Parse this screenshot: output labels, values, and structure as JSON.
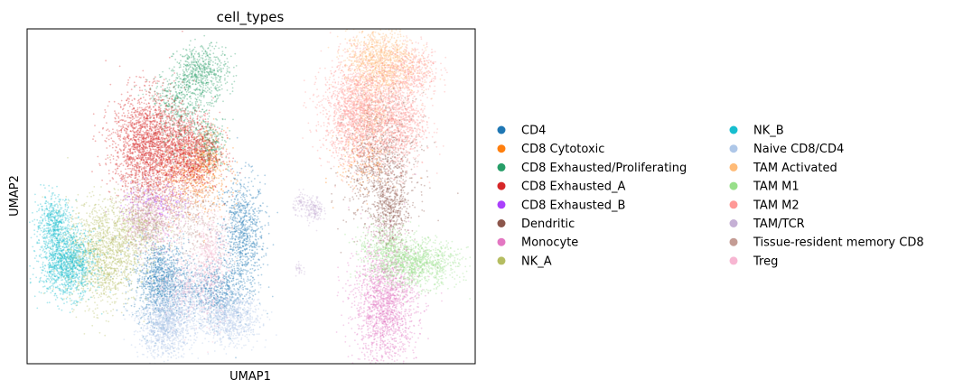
{
  "chart_data": {
    "type": "scatter",
    "title": "cell_types",
    "xlabel": "UMAP1",
    "ylabel": "UMAP2",
    "xticks": [],
    "yticks": [],
    "grid": false,
    "legend_placement": "right",
    "xlim": [
      0,
      100
    ],
    "ylim": [
      0,
      100
    ],
    "series": [
      {
        "name": "CD4",
        "color": "#1f77b4",
        "clusters": [
          [
            48,
            38,
            2.5,
            9,
            900
          ],
          [
            30,
            25,
            3,
            6,
            1100
          ],
          [
            42,
            22,
            3,
            4,
            500
          ]
        ]
      },
      {
        "name": "CD8 Cytotoxic",
        "color": "#ff7f0e",
        "clusters": [
          [
            37,
            55,
            4,
            6,
            500
          ],
          [
            40,
            62,
            2,
            4,
            250
          ],
          [
            75,
            60,
            3,
            5,
            150
          ]
        ]
      },
      {
        "name": "CD8 Exhausted/Proliferating",
        "color": "#279e68",
        "clusters": [
          [
            39,
            87,
            3,
            4,
            600
          ],
          [
            34,
            72,
            3,
            5,
            250
          ],
          [
            41,
            66,
            2,
            4,
            250
          ],
          [
            33,
            80,
            3,
            3,
            200
          ]
        ]
      },
      {
        "name": "CD8 Exhausted_A",
        "color": "#d62728",
        "clusters": [
          [
            27,
            65,
            4,
            8,
            2000
          ],
          [
            36,
            63,
            3.5,
            6,
            1200
          ]
        ]
      },
      {
        "name": "CD8 Exhausted_B",
        "color": "#aa40fc",
        "clusters": [
          [
            29,
            48,
            4,
            3,
            200
          ]
        ]
      },
      {
        "name": "Dendritic",
        "color": "#8c564b",
        "clusters": [
          [
            79,
            60,
            4,
            10,
            1000
          ],
          [
            81,
            45,
            2,
            5,
            400
          ]
        ]
      },
      {
        "name": "Monocyte",
        "color": "#e377c2",
        "clusters": [
          [
            80,
            18,
            3.5,
            9,
            1800
          ],
          [
            28,
            42,
            3,
            4,
            250
          ]
        ]
      },
      {
        "name": "NK_A",
        "color": "#b5bd61",
        "clusters": [
          [
            17,
            33,
            4,
            8,
            1400
          ],
          [
            25,
            40,
            3,
            4,
            300
          ]
        ]
      },
      {
        "name": "NK_B",
        "color": "#17becf",
        "clusters": [
          [
            9,
            30,
            3,
            5,
            1300
          ],
          [
            6,
            42,
            2,
            4,
            500
          ]
        ]
      },
      {
        "name": "Naive CD8/CD4",
        "color": "#aec7e8",
        "clusters": [
          [
            31,
            12,
            3,
            5,
            1200
          ],
          [
            45,
            14,
            3.5,
            4,
            900
          ],
          [
            36,
            20,
            3,
            4,
            300
          ]
        ]
      },
      {
        "name": "TAM Activated",
        "color": "#ffbb78",
        "clusters": [
          [
            79,
            90,
            4,
            5,
            1200
          ],
          [
            77,
            75,
            2.5,
            5,
            250
          ]
        ]
      },
      {
        "name": "TAM M1",
        "color": "#98df8a",
        "clusters": [
          [
            86,
            30,
            5,
            3.5,
            1200
          ],
          [
            80,
            36,
            3,
            3,
            250
          ]
        ]
      },
      {
        "name": "TAM M2",
        "color": "#ff9896",
        "clusters": [
          [
            74,
            75,
            4,
            8,
            1900
          ],
          [
            83,
            72,
            3,
            7,
            900
          ],
          [
            86,
            88,
            3,
            4,
            400
          ]
        ]
      },
      {
        "name": "TAM/TCR",
        "color": "#c5b0d5",
        "clusters": [
          [
            64,
            46,
            1,
            2,
            150
          ],
          [
            61,
            48,
            0.8,
            1.5,
            60
          ],
          [
            61,
            28,
            0.6,
            1,
            25
          ]
        ]
      },
      {
        "name": "Tissue-resident memory CD8",
        "color": "#c49c94",
        "clusters": [
          [
            26,
            44,
            2.5,
            6,
            500
          ],
          [
            34,
            45,
            3,
            5,
            300
          ],
          [
            40,
            40,
            3,
            6,
            200
          ]
        ]
      },
      {
        "name": "Treg",
        "color": "#f7b6d2",
        "clusters": [
          [
            41,
            30,
            2,
            8,
            500
          ],
          [
            35,
            24,
            3,
            5,
            250
          ]
        ]
      }
    ]
  }
}
